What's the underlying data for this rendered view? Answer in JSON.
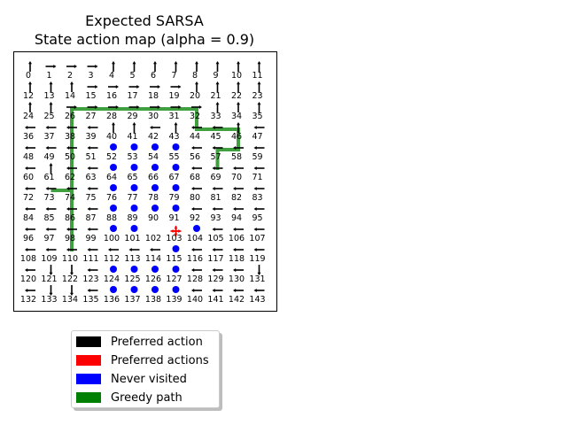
{
  "chart_data": {
    "type": "grid-map",
    "title": "Expected SARSA",
    "subtitle": "State action map (alpha = 0.9)",
    "grid": {
      "columns": 12,
      "rows": 12,
      "state_labels": [
        "0",
        "1",
        "2",
        "3",
        "4",
        "5",
        "6",
        "7",
        "8",
        "9",
        "10",
        "11",
        "12",
        "13",
        "14",
        "15",
        "16",
        "17",
        "18",
        "19",
        "20",
        "21",
        "22",
        "23",
        "24",
        "25",
        "26",
        "27",
        "28",
        "29",
        "30",
        "31",
        "32",
        "33",
        "34",
        "35",
        "36",
        "37",
        "38",
        "39",
        "40",
        "41",
        "42",
        "43",
        "44",
        "45",
        "46",
        "47",
        "48",
        "49",
        "50",
        "51",
        "52",
        "53",
        "54",
        "55",
        "56",
        "57",
        "58",
        "59",
        "60",
        "61",
        "62",
        "63",
        "64",
        "65",
        "66",
        "67",
        "68",
        "69",
        "70",
        "71",
        "72",
        "73",
        "74",
        "75",
        "76",
        "77",
        "78",
        "79",
        "80",
        "81",
        "82",
        "83",
        "84",
        "85",
        "86",
        "87",
        "88",
        "89",
        "90",
        "91",
        "92",
        "93",
        "94",
        "95",
        "96",
        "97",
        "98",
        "99",
        "100",
        "101",
        "102",
        "103",
        "104",
        "105",
        "106",
        "107",
        "108",
        "109",
        "110",
        "111",
        "112",
        "113",
        "114",
        "115",
        "116",
        "117",
        "118",
        "119",
        "120",
        "121",
        "122",
        "123",
        "124",
        "125",
        "126",
        "127",
        "128",
        "129",
        "130",
        "131",
        "132",
        "133",
        "134",
        "135",
        "136",
        "137",
        "138",
        "139",
        "140",
        "141",
        "142",
        "143"
      ]
    },
    "preferred_action": [
      "up",
      "right",
      "right",
      "right",
      "up",
      "up",
      "up",
      "up",
      "up",
      "up",
      "up",
      "up",
      "up",
      "up",
      "up",
      "right",
      "right",
      "right",
      "right",
      "right",
      "up",
      "up",
      "up",
      "up",
      "up",
      "up",
      "right",
      "right",
      "right",
      "right",
      "right",
      "right",
      "right",
      "up",
      "up",
      "up",
      "left",
      "left",
      "left",
      "left",
      "up",
      "up",
      "left",
      "up",
      "left",
      "left",
      "up",
      "left",
      "left",
      "left",
      "left",
      "left",
      "",
      "",
      "",
      "",
      "left",
      "left",
      "left",
      "left",
      "left",
      "up",
      "left",
      "left",
      "",
      "",
      "",
      "",
      "left",
      "left",
      "left",
      "left",
      "left",
      "left",
      "left",
      "left",
      "",
      "",
      "",
      "",
      "left",
      "left",
      "left",
      "left",
      "left",
      "left",
      "left",
      "left",
      "",
      "",
      "",
      "",
      "left",
      "left",
      "left",
      "left",
      "left",
      "left",
      "left",
      "left",
      "",
      "",
      "",
      "",
      "",
      "left",
      "left",
      "left",
      "left",
      "left",
      "left",
      "left",
      "left",
      "left",
      "left",
      "",
      "left",
      "left",
      "left",
      "left",
      "left",
      "down",
      "down",
      "left",
      "",
      "",
      "",
      "",
      "left",
      "left",
      "left",
      "down",
      "left",
      "down",
      "down",
      "left",
      "",
      "",
      "",
      "",
      "left",
      "left",
      "left",
      "left"
    ],
    "never_visited": [
      52,
      53,
      54,
      55,
      64,
      65,
      66,
      67,
      76,
      77,
      78,
      79,
      88,
      89,
      90,
      91,
      100,
      101,
      103,
      104,
      115,
      124,
      125,
      126,
      127,
      136,
      137,
      138,
      139
    ],
    "multi_action_states": [
      {
        "state": 103,
        "actions": [
          "up",
          "down",
          "left",
          "right"
        ]
      }
    ],
    "greedy_path": [
      110,
      98,
      86,
      74,
      73,
      74,
      62,
      50,
      38,
      26,
      27,
      28,
      29,
      30,
      31,
      32,
      44,
      45,
      46,
      58,
      57,
      69
    ],
    "legend": [
      {
        "label": "Preferred action",
        "color": "#000000"
      },
      {
        "label": "Preferred actions",
        "color": "#ff0000"
      },
      {
        "label": "Never visited",
        "color": "#0000ff"
      },
      {
        "label": "Greedy path",
        "color": "#008000"
      }
    ],
    "legend_position": "below",
    "grid_lines": false
  }
}
